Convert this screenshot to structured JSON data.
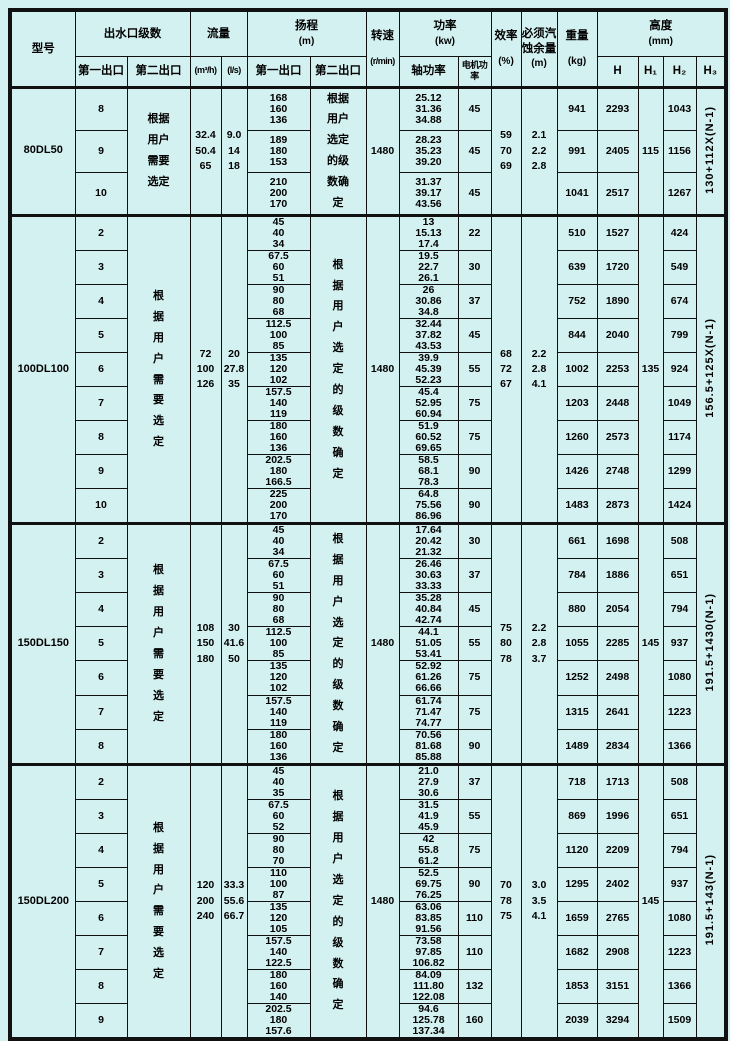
{
  "colors": {
    "background": "#d4f1f1",
    "border": "#111111"
  },
  "header": {
    "model": "型号",
    "outlet_group": "出水口级数",
    "outlet1": "第一出口",
    "outlet2": "第二出口",
    "flow": "流量",
    "flow_m3h": "(m³/h)",
    "flow_ls": "(l/s)",
    "head_group": "扬程",
    "head_unit": "(m)",
    "head1": "第一出口",
    "head2": "第二出口",
    "speed": "转速",
    "speed_unit": "(r/min)",
    "power_group": "功率",
    "power_unit": "(kw)",
    "shaft_power": "轴功率",
    "motor_power": "电机功率",
    "efficiency": "效率",
    "efficiency_unit": "(%)",
    "npsh": "必须汽蚀余量",
    "npsh_unit": "(m)",
    "weight": "重量",
    "weight_unit": "(kg)",
    "height_group": "高度",
    "height_unit": "(mm)",
    "h": "H",
    "h1": "H₁",
    "h2": "H₂",
    "h3": "H₃"
  },
  "sections": [
    {
      "model": "80DL50",
      "outlet2_note_lines": [
        "根据",
        "用户",
        "需要",
        "选定"
      ],
      "flow_m3h": [
        "32.4",
        "50.4",
        "65"
      ],
      "flow_ls": [
        "9.0",
        "14",
        "18"
      ],
      "head2_note_lines": [
        "根据",
        "用户",
        "选定",
        "的级",
        "数确",
        "定"
      ],
      "speed": "1480",
      "efficiency": [
        "59",
        "70",
        "69"
      ],
      "npsh": [
        "2.1",
        "2.2",
        "2.8"
      ],
      "h1": "115",
      "h3": "130+112X(N-1)",
      "rows": [
        {
          "stage": "8",
          "head1": [
            "168",
            "160",
            "136"
          ],
          "shaft": [
            "25.12",
            "31.36",
            "34.88"
          ],
          "motor": "45",
          "weight": "941",
          "h": "2293",
          "h2": "1043"
        },
        {
          "stage": "9",
          "head1": [
            "189",
            "180",
            "153"
          ],
          "shaft": [
            "28.23",
            "35.23",
            "39.20"
          ],
          "motor": "45",
          "weight": "991",
          "h": "2405",
          "h2": "1156"
        },
        {
          "stage": "10",
          "head1": [
            "210",
            "200",
            "170"
          ],
          "shaft": [
            "31.37",
            "39.17",
            "43.56"
          ],
          "motor": "45",
          "weight": "1041",
          "h": "2517",
          "h2": "1267"
        }
      ]
    },
    {
      "model": "100DL100",
      "outlet2_note_lines": [
        "根",
        "据",
        "用",
        "户",
        "需",
        "要",
        "选",
        "定"
      ],
      "flow_m3h": [
        "72",
        "100",
        "126"
      ],
      "flow_ls": [
        "20",
        "27.8",
        "35"
      ],
      "head2_note_lines": [
        "根",
        "据",
        "用",
        "户",
        "选",
        "定",
        "的",
        "级",
        "数",
        "确",
        "定"
      ],
      "speed": "1480",
      "efficiency": [
        "68",
        "72",
        "67"
      ],
      "npsh": [
        "2.2",
        "2.8",
        "4.1"
      ],
      "h1": "135",
      "h3": "156.5+125X(N-1)",
      "rows": [
        {
          "stage": "2",
          "head1": [
            "45",
            "40",
            "34"
          ],
          "shaft": [
            "13",
            "15.13",
            "17.4"
          ],
          "motor": "22",
          "weight": "510",
          "h": "1527",
          "h2": "424"
        },
        {
          "stage": "3",
          "head1": [
            "67.5",
            "60",
            "51"
          ],
          "shaft": [
            "19.5",
            "22.7",
            "26.1"
          ],
          "motor": "30",
          "weight": "639",
          "h": "1720",
          "h2": "549"
        },
        {
          "stage": "4",
          "head1": [
            "90",
            "80",
            "68"
          ],
          "shaft": [
            "26",
            "30.86",
            "34.8"
          ],
          "motor": "37",
          "weight": "752",
          "h": "1890",
          "h2": "674"
        },
        {
          "stage": "5",
          "head1": [
            "112.5",
            "100",
            "85"
          ],
          "shaft": [
            "32.44",
            "37.82",
            "43.53"
          ],
          "motor": "45",
          "weight": "844",
          "h": "2040",
          "h2": "799"
        },
        {
          "stage": "6",
          "head1": [
            "135",
            "120",
            "102"
          ],
          "shaft": [
            "39.9",
            "45.39",
            "52.23"
          ],
          "motor": "55",
          "weight": "1002",
          "h": "2253",
          "h2": "924"
        },
        {
          "stage": "7",
          "head1": [
            "157.5",
            "140",
            "119"
          ],
          "shaft": [
            "45.4",
            "52.95",
            "60.94"
          ],
          "motor": "75",
          "weight": "1203",
          "h": "2448",
          "h2": "1049"
        },
        {
          "stage": "8",
          "head1": [
            "180",
            "160",
            "136"
          ],
          "shaft": [
            "51.9",
            "60.52",
            "69.65"
          ],
          "motor": "75",
          "weight": "1260",
          "h": "2573",
          "h2": "1174"
        },
        {
          "stage": "9",
          "head1": [
            "202.5",
            "180",
            "166.5"
          ],
          "shaft": [
            "58.5",
            "68.1",
            "78.3"
          ],
          "motor": "90",
          "weight": "1426",
          "h": "2748",
          "h2": "1299"
        },
        {
          "stage": "10",
          "head1": [
            "225",
            "200",
            "170"
          ],
          "shaft": [
            "64.8",
            "75.56",
            "86.96"
          ],
          "motor": "90",
          "weight": "1483",
          "h": "2873",
          "h2": "1424"
        }
      ]
    },
    {
      "model": "150DL150",
      "outlet2_note_lines": [
        "根",
        "据",
        "用",
        "户",
        "需",
        "要",
        "选",
        "定"
      ],
      "flow_m3h": [
        "108",
        "150",
        "180"
      ],
      "flow_ls": [
        "30",
        "41.6",
        "50"
      ],
      "head2_note_lines": [
        "根",
        "据",
        "用",
        "户",
        "选",
        "定",
        "的",
        "级",
        "数",
        "确",
        "定"
      ],
      "speed": "1480",
      "efficiency": [
        "75",
        "80",
        "78"
      ],
      "npsh": [
        "2.2",
        "2.8",
        "3.7"
      ],
      "h1": "145",
      "h3": "191.5+1430(N-1)",
      "rows": [
        {
          "stage": "2",
          "head1": [
            "45",
            "40",
            "34"
          ],
          "shaft": [
            "17.64",
            "20.42",
            "21.32"
          ],
          "motor": "30",
          "weight": "661",
          "h": "1698",
          "h2": "508"
        },
        {
          "stage": "3",
          "head1": [
            "67.5",
            "60",
            "51"
          ],
          "shaft": [
            "26.46",
            "30.63",
            "33.33"
          ],
          "motor": "37",
          "weight": "784",
          "h": "1886",
          "h2": "651"
        },
        {
          "stage": "4",
          "head1": [
            "90",
            "80",
            "68"
          ],
          "shaft": [
            "35.28",
            "40.84",
            "42.74"
          ],
          "motor": "45",
          "weight": "880",
          "h": "2054",
          "h2": "794"
        },
        {
          "stage": "5",
          "head1": [
            "112.5",
            "100",
            "85"
          ],
          "shaft": [
            "44.1",
            "51.05",
            "53.41"
          ],
          "motor": "55",
          "weight": "1055",
          "h": "2285",
          "h2": "937"
        },
        {
          "stage": "6",
          "head1": [
            "135",
            "120",
            "102"
          ],
          "shaft": [
            "52.92",
            "61.26",
            "66.66"
          ],
          "motor": "75",
          "weight": "1252",
          "h": "2498",
          "h2": "1080"
        },
        {
          "stage": "7",
          "head1": [
            "157.5",
            "140",
            "119"
          ],
          "shaft": [
            "61.74",
            "71.47",
            "74.77"
          ],
          "motor": "75",
          "weight": "1315",
          "h": "2641",
          "h2": "1223"
        },
        {
          "stage": "8",
          "head1": [
            "180",
            "160",
            "136"
          ],
          "shaft": [
            "70.56",
            "81.68",
            "85.88"
          ],
          "motor": "90",
          "weight": "1489",
          "h": "2834",
          "h2": "1366"
        }
      ]
    },
    {
      "model": "150DL200",
      "outlet2_note_lines": [
        "根",
        "据",
        "用",
        "户",
        "需",
        "要",
        "选",
        "定"
      ],
      "flow_m3h": [
        "120",
        "200",
        "240"
      ],
      "flow_ls": [
        "33.3",
        "55.6",
        "66.7"
      ],
      "head2_note_lines": [
        "根",
        "据",
        "用",
        "户",
        "选",
        "定",
        "的",
        "级",
        "数",
        "确",
        "定"
      ],
      "speed": "1480",
      "efficiency": [
        "70",
        "78",
        "75"
      ],
      "npsh": [
        "3.0",
        "3.5",
        "4.1"
      ],
      "h1": "145",
      "h3": "191.5+143(N-1)",
      "rows": [
        {
          "stage": "2",
          "head1": [
            "45",
            "40",
            "35"
          ],
          "shaft": [
            "21.0",
            "27.9",
            "30.6"
          ],
          "motor": "37",
          "weight": "718",
          "h": "1713",
          "h2": "508"
        },
        {
          "stage": "3",
          "head1": [
            "67.5",
            "60",
            "52"
          ],
          "shaft": [
            "31.5",
            "41.9",
            "45.9"
          ],
          "motor": "55",
          "weight": "869",
          "h": "1996",
          "h2": "651"
        },
        {
          "stage": "4",
          "head1": [
            "90",
            "80",
            "70"
          ],
          "shaft": [
            "42",
            "55.8",
            "61.2"
          ],
          "motor": "75",
          "weight": "1120",
          "h": "2209",
          "h2": "794"
        },
        {
          "stage": "5",
          "head1": [
            "110",
            "100",
            "87"
          ],
          "shaft": [
            "52.5",
            "69.75",
            "76.25"
          ],
          "motor": "90",
          "weight": "1295",
          "h": "2402",
          "h2": "937"
        },
        {
          "stage": "6",
          "head1": [
            "135",
            "120",
            "105"
          ],
          "shaft": [
            "63.06",
            "83.85",
            "91.56"
          ],
          "motor": "110",
          "weight": "1659",
          "h": "2765",
          "h2": "1080"
        },
        {
          "stage": "7",
          "head1": [
            "157.5",
            "140",
            "122.5"
          ],
          "shaft": [
            "73.58",
            "97.85",
            "106.82"
          ],
          "motor": "110",
          "weight": "1682",
          "h": "2908",
          "h2": "1223"
        },
        {
          "stage": "8",
          "head1": [
            "180",
            "160",
            "140"
          ],
          "shaft": [
            "84.09",
            "111.80",
            "122.08"
          ],
          "motor": "132",
          "weight": "1853",
          "h": "3151",
          "h2": "1366"
        },
        {
          "stage": "9",
          "head1": [
            "202.5",
            "180",
            "157.6"
          ],
          "shaft": [
            "94.6",
            "125.78",
            "137.34"
          ],
          "motor": "160",
          "weight": "2039",
          "h": "3294",
          "h2": "1509"
        }
      ]
    }
  ]
}
